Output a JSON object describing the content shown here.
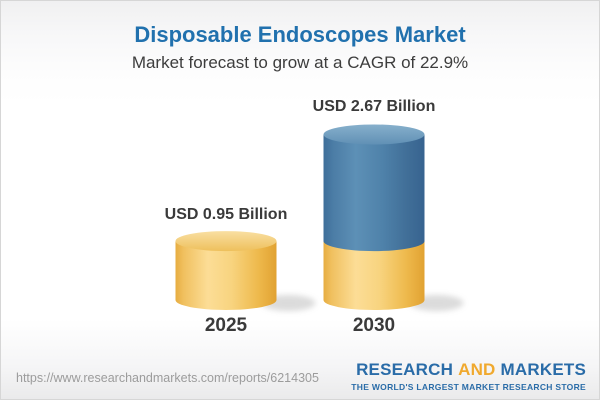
{
  "header": {
    "title": "Disposable Endoscopes Market",
    "subtitle": "Market forecast to grow at a CAGR of 22.9%"
  },
  "chart_data": {
    "type": "bar",
    "variant": "3d-cylinder-stacked",
    "title": "Disposable Endoscopes Market",
    "subtitle": "Market forecast to grow at a CAGR of 22.9%",
    "unit": "USD Billion",
    "cagr_percent": 22.9,
    "categories": [
      "2025",
      "2030"
    ],
    "values": [
      0.95,
      2.67
    ],
    "value_labels": [
      "USD 0.95 Billion",
      "USD 2.67 Billion"
    ],
    "bars": [
      {
        "category": "2025",
        "label": "USD 0.95 Billion",
        "segments": [
          {
            "value": 0.95,
            "color_key": "gold"
          }
        ]
      },
      {
        "category": "2030",
        "label": "USD 2.67 Billion",
        "segments": [
          {
            "value": 0.95,
            "color_key": "gold"
          },
          {
            "value": 1.72,
            "color_key": "blue"
          }
        ]
      }
    ],
    "colors": {
      "gold": "#f5c768",
      "blue": "#4a7ba6"
    },
    "legend": "none",
    "axes": "none"
  },
  "footer": {
    "url": "https://www.researchandmarkets.com/reports/6214305",
    "logo": {
      "line1_part1": "RESEARCH",
      "line1_part2": "AND",
      "line1_part3": "MARKETS",
      "tagline": "THE WORLD'S LARGEST MARKET RESEARCH STORE",
      "colors": {
        "blue": "#2a6ca8",
        "gold": "#f0a92e"
      }
    }
  }
}
